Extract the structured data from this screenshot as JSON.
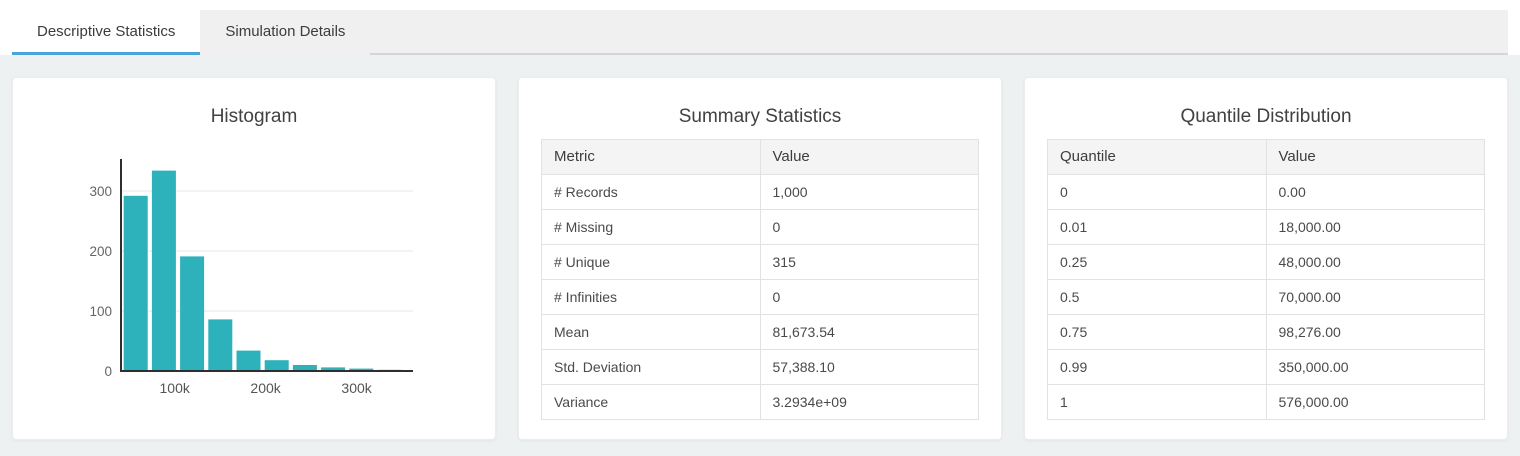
{
  "tabs": [
    {
      "label": "Descriptive Statistics",
      "active": true
    },
    {
      "label": "Simulation Details",
      "active": false
    }
  ],
  "colors": {
    "accent_blue": "#4aa3d9",
    "bar_teal": "#2db1bb",
    "page_background": "#eef1f1",
    "tab_strip_gray": "#f0f0f0"
  },
  "panels": {
    "summary": {
      "title": "Summary Statistics",
      "columns": [
        "Metric",
        "Value"
      ],
      "rows": [
        [
          "# Records",
          "1,000"
        ],
        [
          "# Missing",
          "0"
        ],
        [
          "# Unique",
          "315"
        ],
        [
          "# Infinities",
          "0"
        ],
        [
          "Mean",
          "81,673.54"
        ],
        [
          "Std. Deviation",
          "57,388.10"
        ],
        [
          "Variance",
          "3.2934e+09"
        ]
      ]
    },
    "quantile": {
      "title": "Quantile Distribution",
      "columns": [
        "Quantile",
        "Value"
      ],
      "rows": [
        [
          "0",
          "0.00"
        ],
        [
          "0.01",
          "18,000.00"
        ],
        [
          "0.25",
          "48,000.00"
        ],
        [
          "0.5",
          "70,000.00"
        ],
        [
          "0.75",
          "98,276.00"
        ],
        [
          "0.99",
          "350,000.00"
        ],
        [
          "1",
          "576,000.00"
        ]
      ]
    }
  },
  "chart_data": {
    "type": "bar",
    "title": "Histogram",
    "values": [
      292,
      334,
      191,
      86,
      34,
      18,
      10,
      6,
      4,
      2
    ],
    "bin_start": 44000,
    "bin_width": 31000,
    "x_ticks": [
      {
        "value": 100000,
        "label": "100k"
      },
      {
        "value": 200000,
        "label": "200k"
      },
      {
        "value": 300000,
        "label": "300k"
      }
    ],
    "y_ticks": [
      0,
      100,
      200,
      300
    ],
    "xlim": [
      41000,
      362000
    ],
    "ylim": [
      0,
      350
    ],
    "xlabel": "",
    "ylabel": "",
    "bar_color": "#2db1bb",
    "grid": true,
    "legend": "none"
  }
}
